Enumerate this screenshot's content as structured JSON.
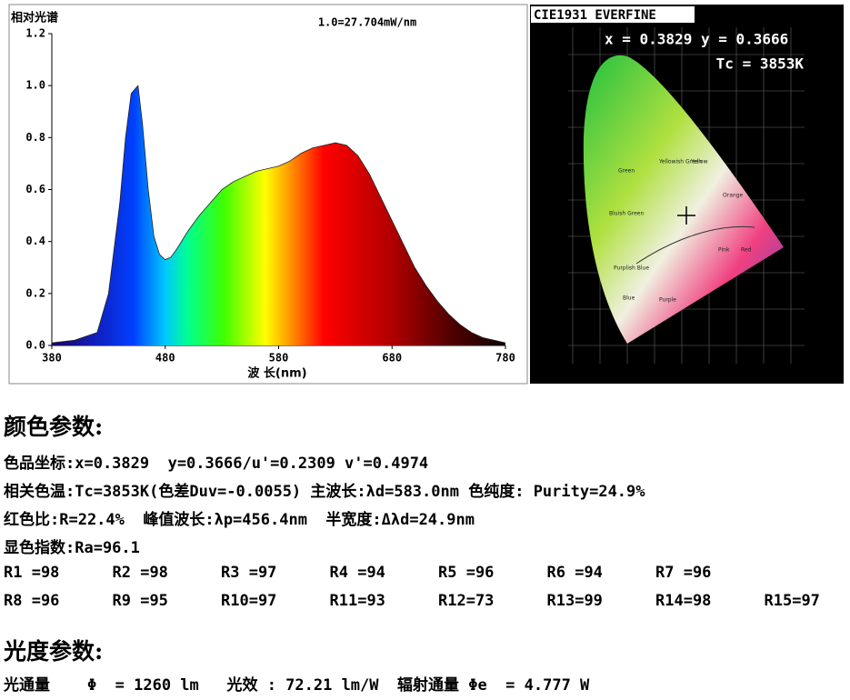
{
  "chart_data": {
    "type": "area",
    "title": "相对光谱",
    "annotation": "1.0=27.704mW/nm",
    "x_label": "波 长(nm)",
    "x": [
      380,
      400,
      420,
      430,
      440,
      445,
      450,
      456,
      460,
      465,
      470,
      475,
      480,
      485,
      490,
      500,
      510,
      520,
      530,
      540,
      550,
      560,
      570,
      580,
      590,
      600,
      610,
      620,
      630,
      640,
      650,
      660,
      670,
      680,
      690,
      700,
      710,
      720,
      730,
      740,
      750,
      760,
      770,
      780
    ],
    "values": [
      0.01,
      0.02,
      0.05,
      0.2,
      0.55,
      0.8,
      0.97,
      1.0,
      0.85,
      0.6,
      0.42,
      0.35,
      0.33,
      0.34,
      0.37,
      0.44,
      0.5,
      0.55,
      0.6,
      0.63,
      0.65,
      0.67,
      0.68,
      0.69,
      0.71,
      0.74,
      0.76,
      0.77,
      0.78,
      0.77,
      0.73,
      0.66,
      0.57,
      0.48,
      0.39,
      0.3,
      0.23,
      0.17,
      0.12,
      0.08,
      0.05,
      0.03,
      0.02,
      0.01
    ],
    "xlim": [
      380,
      780
    ],
    "xticks": [
      380,
      480,
      580,
      680,
      780
    ],
    "ylim": [
      0,
      1.2
    ],
    "yticks": [
      {
        "value": 0,
        "label": "0.0"
      },
      0.2,
      0.4,
      0.6,
      0.8,
      {
        "value": 1,
        "label": "1.0"
      },
      1.2
    ],
    "grid": false
  },
  "cie": {
    "title": "CIE1931 EVERFINE",
    "coords": "x = 0.3829 y = 0.3666",
    "tc": "Tc = 3853K",
    "labels": [
      "Green",
      "Yellowish Green",
      "Yellow",
      "Orange",
      "Bluish Green",
      "Pink",
      "Red",
      "Purplish Blue",
      "Purple",
      "Blue"
    ]
  },
  "report": {
    "color_heading": "颜色参数:",
    "color_lines": [
      "色品坐标:x=0.3829  y=0.3666/u'=0.2309 v'=0.4974",
      "相关色温:Tc=3853K(色差Duv=-0.0055) 主波长:λd=583.0nm 色纯度: Purity=24.9%",
      "红色比:R=22.4%  峰值波长:λp=456.4nm  半宽度:Δλd=24.9nm",
      "显色指数:Ra=96.1"
    ],
    "r_rows": [
      [
        "R1 =98",
        "R2 =98",
        "R3 =97",
        "R4 =94",
        "R5 =96",
        "R6 =94",
        "R7 =96"
      ],
      [
        "R8 =96",
        "R9 =95",
        "R10=97",
        "R11=93",
        "R12=73",
        "R13=99",
        "R14=98",
        "R15=97"
      ]
    ],
    "photo_heading": "光度参数:",
    "photo_line": "光通量    Φ  = 1260 lm   光效 : 72.21 lm/W  辐射通量 Φe  = 4.777 W"
  }
}
